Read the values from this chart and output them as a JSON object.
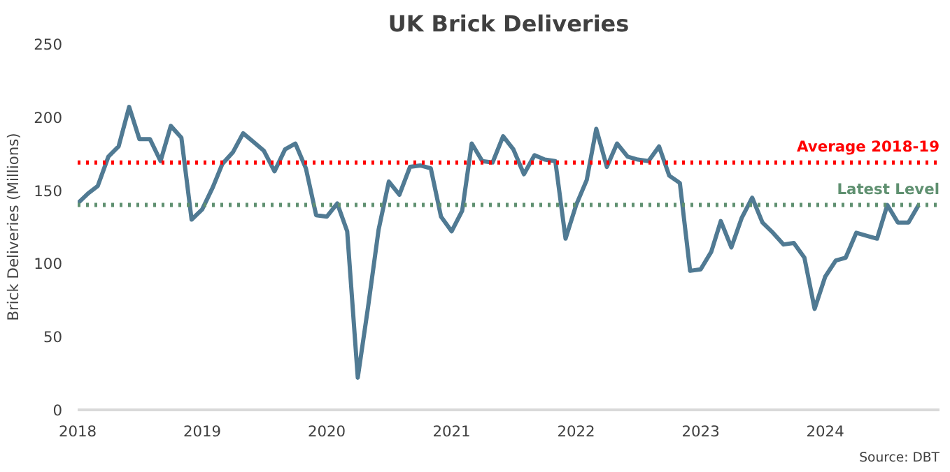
{
  "chart_data": {
    "type": "line",
    "title": "UK Brick Deliveries",
    "ylabel": "Brick Deliveries (Millions)",
    "x": [
      "2018-01",
      "2018-02",
      "2018-03",
      "2018-04",
      "2018-05",
      "2018-06",
      "2018-07",
      "2018-08",
      "2018-09",
      "2018-10",
      "2018-11",
      "2018-12",
      "2019-01",
      "2019-02",
      "2019-03",
      "2019-04",
      "2019-05",
      "2019-06",
      "2019-07",
      "2019-08",
      "2019-09",
      "2019-10",
      "2019-11",
      "2019-12",
      "2020-01",
      "2020-02",
      "2020-03",
      "2020-04",
      "2020-05",
      "2020-06",
      "2020-07",
      "2020-08",
      "2020-09",
      "2020-10",
      "2020-11",
      "2020-12",
      "2021-01",
      "2021-02",
      "2021-03",
      "2021-04",
      "2021-05",
      "2021-06",
      "2021-07",
      "2021-08",
      "2021-09",
      "2021-10",
      "2021-11",
      "2021-12",
      "2022-01",
      "2022-02",
      "2022-03",
      "2022-04",
      "2022-05",
      "2022-06",
      "2022-07",
      "2022-08",
      "2022-09",
      "2022-10",
      "2022-11",
      "2022-12",
      "2023-01",
      "2023-02",
      "2023-03",
      "2023-04",
      "2023-05",
      "2023-06",
      "2023-07",
      "2023-08",
      "2023-09",
      "2023-10",
      "2023-11",
      "2023-12",
      "2024-01",
      "2024-02",
      "2024-03",
      "2024-04",
      "2024-05",
      "2024-06",
      "2024-07",
      "2024-08",
      "2024-09",
      "2024-10"
    ],
    "series": [
      {
        "color": "#507a93",
        "values": [
          141,
          148,
          153,
          173,
          180,
          207,
          185,
          185,
          170,
          194,
          186,
          130,
          137,
          152,
          168,
          176,
          189,
          183,
          177,
          163,
          178,
          182,
          165,
          133,
          132,
          141,
          122,
          22,
          70,
          123,
          156,
          147,
          166,
          167,
          165,
          132,
          122,
          136,
          182,
          170,
          169,
          187,
          178,
          161,
          174,
          171,
          170,
          117,
          140,
          157,
          192,
          166,
          182,
          173,
          171,
          170,
          180,
          160,
          155,
          95,
          96,
          108,
          129,
          111,
          131,
          145,
          128,
          121,
          113,
          114,
          104,
          69,
          91,
          102,
          104,
          121,
          119,
          117,
          140,
          128,
          128,
          140
        ]
      }
    ],
    "xlim": [
      "2018-01",
      "2024-12"
    ],
    "xticks": [
      {
        "value": "2018-01",
        "label": "2018"
      },
      {
        "value": "2019-01",
        "label": "2019"
      },
      {
        "value": "2020-01",
        "label": "2020"
      },
      {
        "value": "2021-01",
        "label": "2021"
      },
      {
        "value": "2022-01",
        "label": "2022"
      },
      {
        "value": "2023-01",
        "label": "2023"
      },
      {
        "value": "2024-01",
        "label": "2024"
      }
    ],
    "ylim": [
      0,
      250
    ],
    "yticks": [
      0,
      50,
      100,
      150,
      200,
      250
    ],
    "ref_lines": [
      {
        "axis": "y",
        "value": 169,
        "label": "Average 2018-19",
        "color": "#ff0000",
        "line_style": "dotted"
      },
      {
        "axis": "y",
        "value": 140,
        "label": "Latest Level",
        "color": "#5f9070",
        "line_style": "dotted"
      }
    ],
    "annotations": [
      "Source: DBT"
    ],
    "grid": false,
    "marker": "none",
    "line_style": "solid"
  }
}
